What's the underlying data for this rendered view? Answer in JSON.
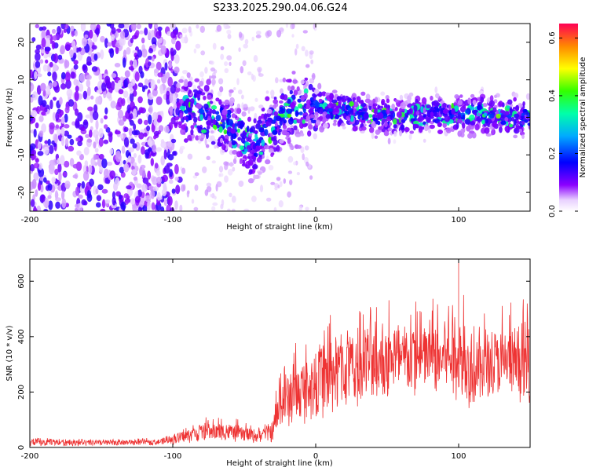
{
  "title": "S233.2025.290.04.06.G24",
  "colorbar": {
    "label": "Normalized spectral amplitude",
    "ticks": [
      "0.0",
      "0.2",
      "0.4",
      "0.6"
    ],
    "tick_values": [
      0.0,
      0.2,
      0.4,
      0.6
    ],
    "range": [
      0.0,
      0.65
    ]
  },
  "chart_data": [
    {
      "type": "heatmap",
      "name": "spectrogram",
      "xlabel": "Height of straight line (km)",
      "ylabel": "Frequency (Hz)",
      "xlim": [
        -200,
        150
      ],
      "ylim": [
        -25,
        25
      ],
      "x_ticks": [
        -200,
        -100,
        0,
        100
      ],
      "x_tick_labels": [
        "-200",
        "-100",
        "0",
        "100"
      ],
      "y_ticks": [
        -20,
        -10,
        0,
        10,
        20
      ],
      "y_tick_labels": [
        "-20",
        "-10",
        "0",
        "10",
        "20"
      ],
      "description_values": {
        "signal_band_center_hz": [
          [
            -90,
            2
          ],
          [
            -60,
            -2
          ],
          [
            -45,
            -8
          ],
          [
            -20,
            2
          ],
          [
            0,
            3
          ],
          [
            50,
            0
          ],
          [
            100,
            1
          ],
          [
            150,
            0
          ]
        ],
        "noise_region_x": [
          -200,
          -95
        ]
      }
    },
    {
      "type": "line",
      "name": "snr",
      "xlabel": "Height of straight line (km)",
      "ylabel": "SNR (10 * v/v)",
      "xlim": [
        -200,
        150
      ],
      "ylim": [
        0,
        680
      ],
      "x_ticks": [
        -200,
        -100,
        0,
        100
      ],
      "x_tick_labels": [
        "-200",
        "-100",
        "0",
        "100"
      ],
      "y_ticks": [
        0,
        200,
        400,
        600
      ],
      "y_tick_labels": [
        "0",
        "200",
        "400",
        "600"
      ],
      "color": "#ee3333",
      "envelope": {
        "x": [
          -200,
          -150,
          -110,
          -100,
          -80,
          -60,
          -40,
          -30,
          -25,
          -15,
          0,
          10,
          25,
          50,
          75,
          100,
          110,
          125,
          150
        ],
        "low": [
          5,
          5,
          8,
          10,
          20,
          20,
          15,
          20,
          60,
          80,
          90,
          110,
          140,
          160,
          180,
          170,
          130,
          170,
          160
        ],
        "high": [
          35,
          30,
          35,
          50,
          110,
          110,
          80,
          120,
          330,
          380,
          430,
          500,
          500,
          560,
          560,
          630,
          560,
          520,
          560
        ],
        "center": [
          20,
          17,
          20,
          30,
          55,
          55,
          40,
          60,
          150,
          190,
          230,
          260,
          280,
          300,
          310,
          320,
          250,
          300,
          270
        ]
      },
      "peak": {
        "x": 100,
        "y": 680
      }
    }
  ]
}
